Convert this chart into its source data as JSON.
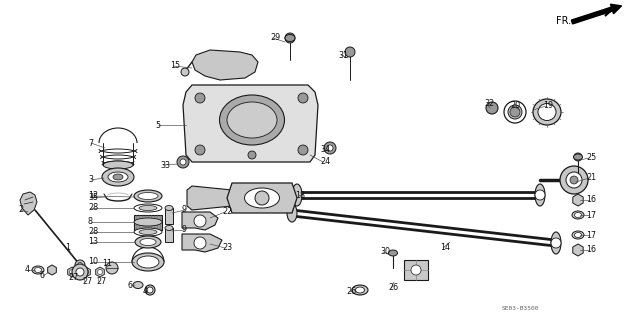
{
  "background_color": "#ffffff",
  "diagram_code": "SE03-B3500",
  "fr_label": "FR.",
  "fig_width": 6.4,
  "fig_height": 3.19,
  "dpi": 100,
  "line_color": "#1a1a1a",
  "label_fontsize": 5.8,
  "label_color": "#111111",
  "gray_light": "#c8c8c8",
  "gray_mid": "#999999",
  "gray_dark": "#555555"
}
